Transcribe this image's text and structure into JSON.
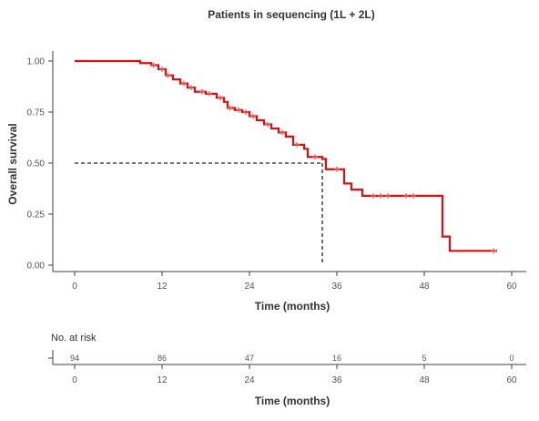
{
  "chart_data": {
    "type": "line",
    "title": "Patients in sequencing (1L + 2L)",
    "xlabel": "Time (months)",
    "ylabel": "Overall survival",
    "xlim": [
      0,
      60
    ],
    "ylim": [
      0,
      1
    ],
    "x_ticks": [
      "0",
      "12",
      "24",
      "36",
      "48",
      "60"
    ],
    "y_ticks": [
      "0.00",
      "0.25",
      "0.50",
      "0.75",
      "1.00"
    ],
    "x_tick_values": [
      0,
      12,
      24,
      36,
      48,
      60
    ],
    "y_tick_values": [
      0,
      0.25,
      0.5,
      0.75,
      1
    ],
    "series": [
      {
        "color": "#dd0f0f",
        "steps": [
          [
            0,
            1.0
          ],
          [
            9,
            0.99
          ],
          [
            10.5,
            0.98
          ],
          [
            11.5,
            0.96
          ],
          [
            12.5,
            0.93
          ],
          [
            13.5,
            0.91
          ],
          [
            14.5,
            0.89
          ],
          [
            15.5,
            0.87
          ],
          [
            16.5,
            0.85
          ],
          [
            18,
            0.84
          ],
          [
            19.5,
            0.82
          ],
          [
            20.5,
            0.8
          ],
          [
            21,
            0.77
          ],
          [
            22,
            0.76
          ],
          [
            23,
            0.75
          ],
          [
            24,
            0.73
          ],
          [
            25,
            0.71
          ],
          [
            26,
            0.69
          ],
          [
            27,
            0.67
          ],
          [
            28,
            0.65
          ],
          [
            29,
            0.63
          ],
          [
            30,
            0.59
          ],
          [
            31.5,
            0.57
          ],
          [
            32,
            0.53
          ],
          [
            34,
            0.52
          ],
          [
            34.5,
            0.47
          ],
          [
            37,
            0.4
          ],
          [
            38,
            0.37
          ],
          [
            39.5,
            0.34
          ],
          [
            50.5,
            0.14
          ],
          [
            51.5,
            0.07
          ],
          [
            58,
            0.07
          ]
        ],
        "censors": [
          [
            10.8,
            0.98
          ],
          [
            12,
            0.96
          ],
          [
            12.8,
            0.93
          ],
          [
            15,
            0.89
          ],
          [
            16,
            0.87
          ],
          [
            17.5,
            0.85
          ],
          [
            18.5,
            0.84
          ],
          [
            20,
            0.82
          ],
          [
            21.3,
            0.77
          ],
          [
            22.5,
            0.76
          ],
          [
            23.5,
            0.75
          ],
          [
            24.5,
            0.73
          ],
          [
            26.5,
            0.69
          ],
          [
            28.5,
            0.65
          ],
          [
            30.5,
            0.59
          ],
          [
            33,
            0.53
          ],
          [
            36,
            0.47
          ],
          [
            41,
            0.34
          ],
          [
            42,
            0.34
          ],
          [
            43,
            0.34
          ],
          [
            45.5,
            0.34
          ],
          [
            46.5,
            0.34
          ],
          [
            57.5,
            0.07
          ]
        ]
      }
    ],
    "median_reference": {
      "x": 34,
      "y": 0.5
    },
    "grid": false,
    "legend": "none"
  },
  "risk_table": {
    "label": "No. at risk",
    "times": [
      0,
      12,
      24,
      36,
      48,
      60
    ],
    "values": [
      "94",
      "86",
      "47",
      "16",
      "5",
      "0"
    ],
    "x_ticks": [
      "0",
      "12",
      "24",
      "36",
      "48",
      "60"
    ],
    "xlabel": "Time (months)"
  }
}
